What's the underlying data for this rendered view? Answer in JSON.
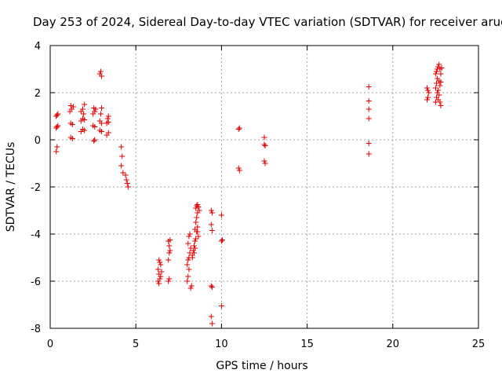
{
  "chart_data": {
    "type": "scatter",
    "title": "Day 253 of 2024, Sidereal Day-to-day VTEC variation (SDTVAR) for receiver aruc",
    "xlabel": "GPS time / hours",
    "ylabel": "SDTVAR / TECUs",
    "xlim": [
      0,
      25
    ],
    "ylim": [
      -8,
      4
    ],
    "xticks": [
      0,
      5,
      10,
      15,
      20,
      25
    ],
    "yticks": [
      -8,
      -6,
      -4,
      -2,
      0,
      2,
      4
    ],
    "grid": true,
    "marker": "plus",
    "color": "#e00000",
    "series": [
      {
        "name": "SDTVAR",
        "points": [
          [
            0.35,
            -0.5
          ],
          [
            0.4,
            -0.3
          ],
          [
            0.35,
            0.5
          ],
          [
            0.4,
            0.55
          ],
          [
            0.45,
            0.6
          ],
          [
            0.35,
            1.0
          ],
          [
            0.4,
            1.05
          ],
          [
            0.45,
            1.1
          ],
          [
            1.2,
            0.1
          ],
          [
            1.3,
            0.05
          ],
          [
            1.2,
            0.7
          ],
          [
            1.3,
            0.65
          ],
          [
            1.15,
            1.2
          ],
          [
            1.25,
            1.3
          ],
          [
            1.35,
            1.4
          ],
          [
            1.2,
            1.45
          ],
          [
            1.8,
            0.35
          ],
          [
            1.9,
            0.45
          ],
          [
            2.0,
            0.4
          ],
          [
            1.8,
            0.8
          ],
          [
            1.9,
            0.9
          ],
          [
            2.0,
            0.85
          ],
          [
            1.8,
            1.2
          ],
          [
            1.9,
            1.3
          ],
          [
            2.0,
            1.5
          ],
          [
            1.95,
            1.1
          ],
          [
            2.55,
            -0.05
          ],
          [
            2.6,
            0.0
          ],
          [
            2.5,
            0.6
          ],
          [
            2.6,
            0.55
          ],
          [
            2.5,
            1.1
          ],
          [
            2.6,
            1.2
          ],
          [
            2.55,
            1.35
          ],
          [
            2.65,
            1.3
          ],
          [
            2.9,
            2.8
          ],
          [
            2.95,
            2.9
          ],
          [
            3.0,
            2.7
          ],
          [
            2.9,
            0.4
          ],
          [
            3.0,
            0.35
          ],
          [
            2.9,
            0.8
          ],
          [
            3.0,
            0.7
          ],
          [
            2.95,
            1.1
          ],
          [
            3.0,
            1.35
          ],
          [
            3.3,
            0.2
          ],
          [
            3.4,
            0.3
          ],
          [
            3.3,
            0.7
          ],
          [
            3.4,
            0.75
          ],
          [
            3.35,
            0.9
          ],
          [
            3.4,
            1.0
          ],
          [
            4.15,
            -0.3
          ],
          [
            4.2,
            -0.7
          ],
          [
            4.15,
            -1.1
          ],
          [
            4.25,
            -1.4
          ],
          [
            4.4,
            -1.5
          ],
          [
            4.45,
            -1.7
          ],
          [
            4.5,
            -1.85
          ],
          [
            4.55,
            -2.0
          ],
          [
            6.3,
            -6.0
          ],
          [
            6.35,
            -6.1
          ],
          [
            6.4,
            -5.9
          ],
          [
            6.3,
            -5.5
          ],
          [
            6.4,
            -5.2
          ],
          [
            6.35,
            -5.7
          ],
          [
            6.45,
            -5.8
          ],
          [
            6.5,
            -5.6
          ],
          [
            6.45,
            -5.3
          ],
          [
            6.35,
            -5.1
          ],
          [
            6.9,
            -6.0
          ],
          [
            6.95,
            -5.9
          ],
          [
            6.9,
            -5.1
          ],
          [
            6.95,
            -4.8
          ],
          [
            7.0,
            -4.7
          ],
          [
            6.9,
            -4.3
          ],
          [
            7.0,
            -4.25
          ],
          [
            6.95,
            -4.5
          ],
          [
            8.0,
            -6.0
          ],
          [
            8.05,
            -5.8
          ],
          [
            8.1,
            -5.5
          ],
          [
            8.0,
            -5.3
          ],
          [
            8.05,
            -5.1
          ],
          [
            8.1,
            -5.0
          ],
          [
            8.15,
            -4.8
          ],
          [
            8.2,
            -4.6
          ],
          [
            8.05,
            -4.4
          ],
          [
            8.1,
            -4.1
          ],
          [
            8.15,
            -4.0
          ],
          [
            8.2,
            -6.3
          ],
          [
            8.25,
            -6.2
          ],
          [
            8.3,
            -5.0
          ],
          [
            8.35,
            -4.7
          ],
          [
            8.4,
            -4.5
          ],
          [
            8.45,
            -4.3
          ],
          [
            8.3,
            -4.9
          ],
          [
            8.4,
            -4.8
          ],
          [
            8.45,
            -4.6
          ],
          [
            8.5,
            -4.2
          ],
          [
            8.55,
            -3.9
          ],
          [
            8.6,
            -3.7
          ],
          [
            8.5,
            -3.5
          ],
          [
            8.55,
            -3.3
          ],
          [
            8.6,
            -3.1
          ],
          [
            8.5,
            -2.9
          ],
          [
            8.55,
            -2.8
          ],
          [
            8.6,
            -2.75
          ],
          [
            8.65,
            -2.85
          ],
          [
            8.7,
            -3.0
          ],
          [
            8.6,
            -3.9
          ],
          [
            8.65,
            -4.1
          ],
          [
            8.45,
            -3.8
          ],
          [
            9.4,
            -3.0
          ],
          [
            9.45,
            -3.1
          ],
          [
            9.4,
            -3.6
          ],
          [
            9.45,
            -3.85
          ],
          [
            9.4,
            -6.2
          ],
          [
            9.45,
            -6.25
          ],
          [
            9.4,
            -7.5
          ],
          [
            9.45,
            -7.8
          ],
          [
            10.0,
            -3.2
          ],
          [
            10.0,
            -4.3
          ],
          [
            10.05,
            -4.25
          ],
          [
            10.0,
            -7.05
          ],
          [
            11.0,
            -1.2
          ],
          [
            11.05,
            -1.3
          ],
          [
            11.0,
            0.45
          ],
          [
            11.05,
            0.5
          ],
          [
            12.5,
            0.1
          ],
          [
            12.5,
            -0.2
          ],
          [
            12.55,
            -0.25
          ],
          [
            12.5,
            -0.9
          ],
          [
            12.55,
            -1.0
          ],
          [
            18.6,
            2.25
          ],
          [
            18.6,
            1.65
          ],
          [
            18.6,
            1.3
          ],
          [
            18.6,
            0.9
          ],
          [
            18.6,
            -0.15
          ],
          [
            18.6,
            -0.6
          ],
          [
            22.0,
            1.7
          ],
          [
            22.05,
            1.8
          ],
          [
            22.1,
            2.0
          ],
          [
            22.0,
            2.2
          ],
          [
            22.05,
            2.1
          ],
          [
            22.5,
            1.6
          ],
          [
            22.55,
            1.8
          ],
          [
            22.6,
            2.0
          ],
          [
            22.5,
            2.2
          ],
          [
            22.55,
            2.4
          ],
          [
            22.6,
            2.6
          ],
          [
            22.5,
            2.8
          ],
          [
            22.55,
            2.9
          ],
          [
            22.6,
            3.0
          ],
          [
            22.65,
            3.1
          ],
          [
            22.7,
            3.2
          ],
          [
            22.75,
            3.0
          ],
          [
            22.8,
            2.8
          ],
          [
            22.7,
            2.5
          ],
          [
            22.75,
            2.3
          ],
          [
            22.65,
            2.1
          ],
          [
            22.7,
            1.9
          ],
          [
            22.75,
            1.6
          ],
          [
            22.8,
            1.45
          ],
          [
            22.65,
            1.7
          ],
          [
            22.8,
            2.45
          ],
          [
            22.85,
            3.05
          ]
        ]
      }
    ]
  }
}
